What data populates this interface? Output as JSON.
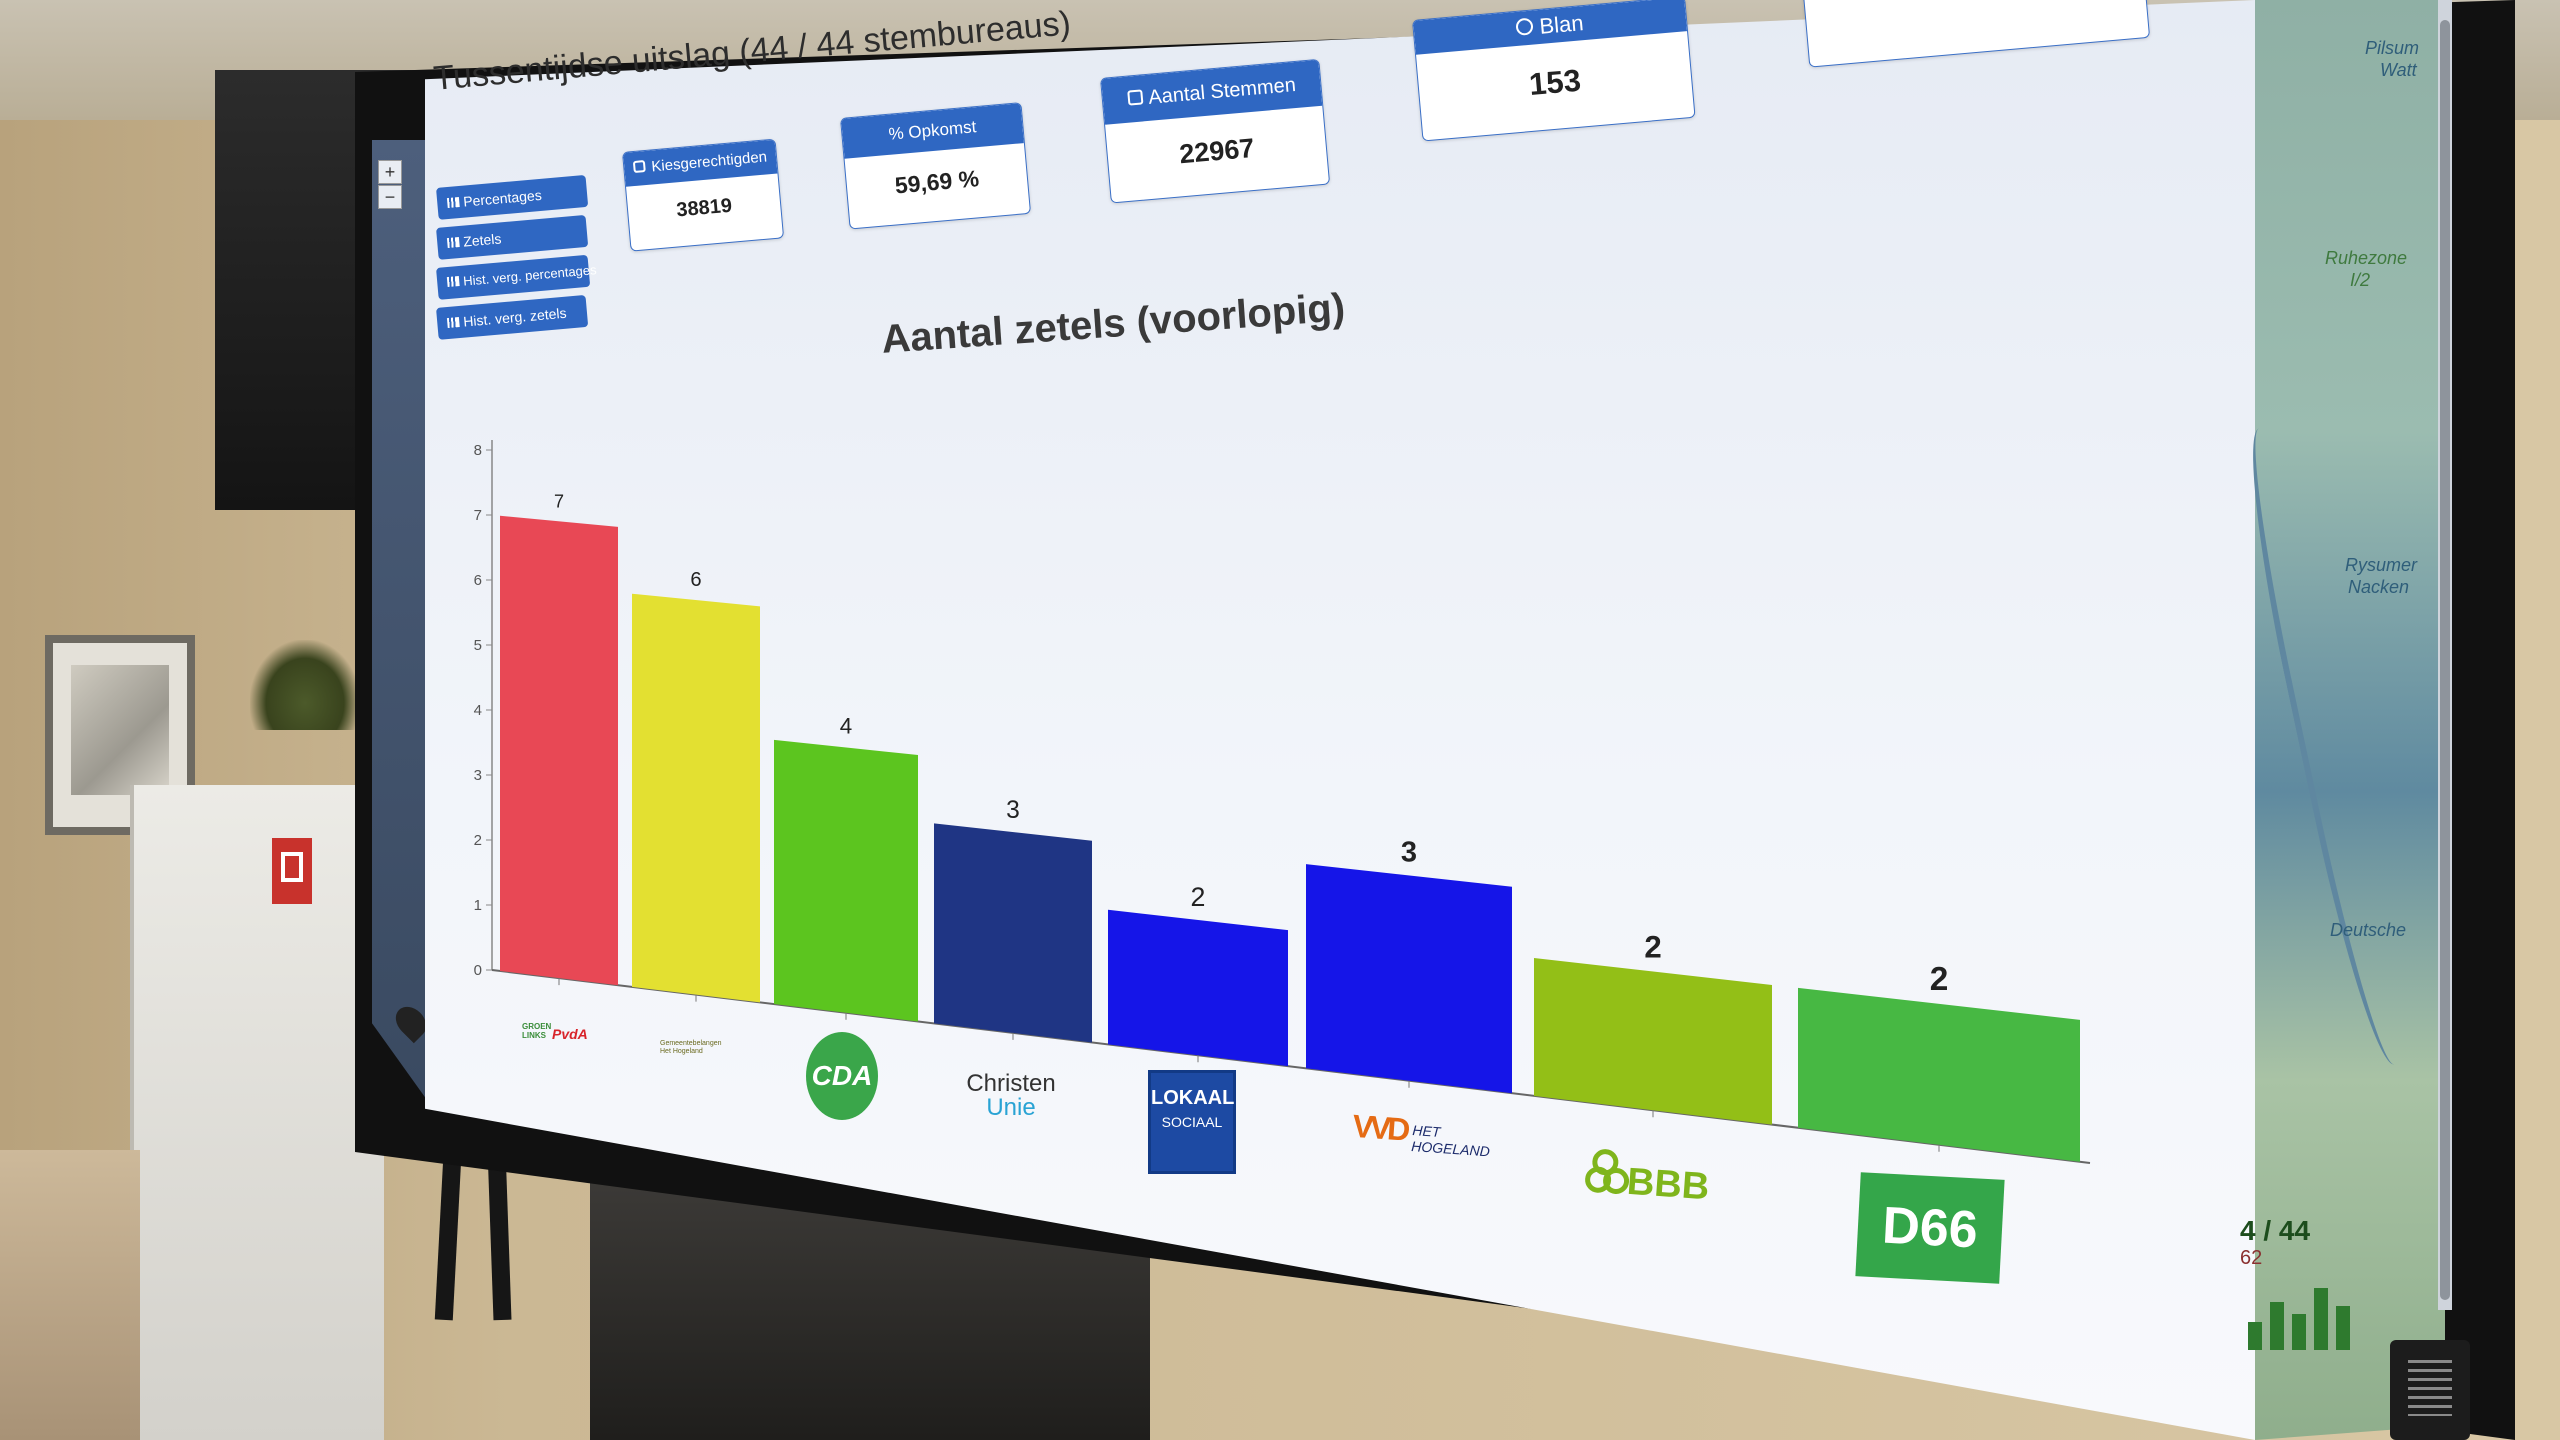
{
  "header": {
    "title": "Tussentijdse uitslag (44 / 44 stembureaus)"
  },
  "nav": {
    "items": [
      {
        "label": "Percentages"
      },
      {
        "label": "Zetels"
      },
      {
        "label": "Hist. verg. percentages"
      },
      {
        "label": "Hist. verg. zetels"
      }
    ]
  },
  "stats": {
    "kiesgerechtigden": {
      "label": "Kiesgerechtigden",
      "value": "38819"
    },
    "opkomst": {
      "label": "% Opkomst",
      "value": "59,69 %"
    },
    "aantal_stemmen": {
      "label": "Aantal Stemmen",
      "value": "22967"
    },
    "blanco": {
      "label": "Blan",
      "value": "153"
    }
  },
  "map": {
    "label_1": "Pilsum",
    "label_1b": "Watt",
    "label_2": "Ruhezone",
    "label_2b": "I/2",
    "label_3": "Rysumer",
    "label_3b": "Nacken",
    "label_4": "Deutsche",
    "counter": "4 / 44",
    "sub": "62"
  },
  "colors": {
    "accent": "#2f67c2",
    "bars": [
      "#e84855",
      "#e3e031",
      "#5cc51f",
      "#1f3584",
      "#1515e8",
      "#1515e8",
      "#93bf17",
      "#47b843"
    ]
  },
  "chart_data": {
    "type": "bar",
    "title": "Aantal zetels (voorlopig)",
    "categories": [
      "GroenLinks/PvdA",
      "Gemeentebelangen Het Hogeland",
      "CDA",
      "ChristenUnie",
      "Lokaal Sociaal",
      "VVD Het Hogeland",
      "BBB",
      "D66"
    ],
    "values": [
      7,
      6,
      4,
      3,
      2,
      3,
      2,
      2
    ],
    "data_labels": [
      "7",
      "6",
      "4",
      "3",
      "2",
      "3",
      "2",
      "2"
    ],
    "ylim": [
      0,
      8
    ],
    "yticks": [
      "0",
      "1",
      "2",
      "3",
      "4",
      "5",
      "6",
      "7",
      "8"
    ],
    "grid": false,
    "legend": "none",
    "logos": {
      "cda": "CDA",
      "christen": "Christen",
      "unie": "Unie",
      "lokaal": "LOKAAL",
      "sociaal": "SOCIAAL",
      "vvd": "VVD",
      "vvd_sub": "HET HOGELAND",
      "bbb": "BBB",
      "d66": "D66",
      "glpvda_a": "GROEN LINKS",
      "glpvda_b": "PvdA",
      "gemeentebelangen": "Gemeentebelangen Het Hogeland"
    }
  }
}
